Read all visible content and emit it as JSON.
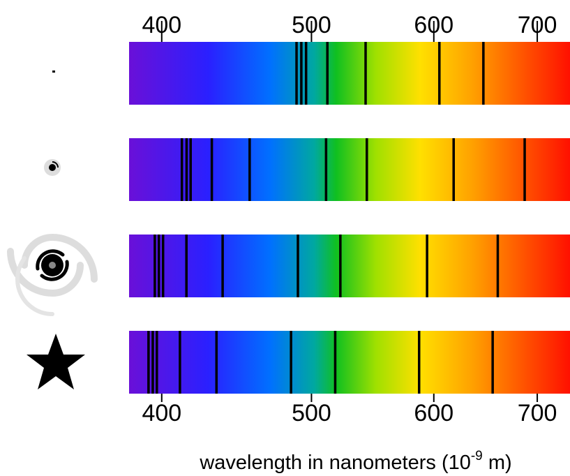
{
  "chart_data": {
    "type": "spectrum",
    "xlabel": "wavelength in nanometers (10",
    "xlabel_exponent": "-9",
    "xlabel_suffix": " m)",
    "xlim": [
      381,
      735
    ],
    "xscale": "log",
    "xticks": [
      400,
      500,
      600,
      700
    ],
    "line_color": "#000000",
    "spectra": [
      {
        "lines": [
          489,
          492.5,
          496,
          512,
          542,
          605,
          646
        ]
      },
      {
        "lines": [
          412.2,
          415.1,
          417.6,
          431,
          456,
          511,
          543,
          618,
          687
        ]
      },
      {
        "lines": [
          395.9,
          398.3,
          400.8,
          415,
          438,
          490,
          522,
          594,
          660
        ]
      },
      {
        "lines": [
          392.2,
          394.7,
          397.1,
          411,
          434,
          485,
          518,
          587,
          655
        ]
      }
    ]
  }
}
